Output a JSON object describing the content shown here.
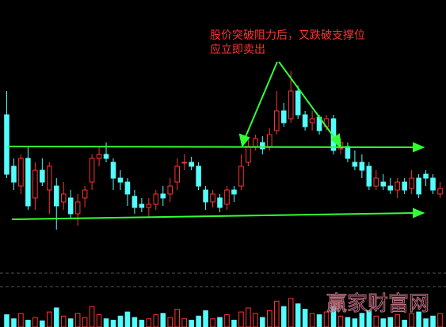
{
  "chart_data": {
    "type": "candlestick",
    "annotation": [
      "股价突破阻力后，又跌破支撑位",
      "应立即卖出"
    ],
    "watermark": "赢家财富网",
    "up_color": "#ff3232",
    "down_color": "#54fcfc",
    "ylim": [
      0,
      220
    ],
    "y2lim": [
      0,
      50
    ],
    "open": [
      155,
      90,
      65,
      100,
      50,
      85,
      60,
      65,
      45,
      50,
      30,
      50,
      70,
      100,
      105,
      95,
      75,
      70,
      52,
      42,
      38,
      42,
      55,
      55,
      70,
      95,
      95,
      90,
      60,
      45,
      50,
      42,
      60,
      65,
      95,
      115,
      120,
      115,
      135,
      160,
      150,
      185,
      155,
      145,
      152,
      140,
      150,
      112,
      115,
      95,
      95,
      90,
      65,
      70,
      65,
      60,
      70,
      62,
      75,
      80,
      75,
      55
    ],
    "close": [
      80,
      70,
      100,
      40,
      85,
      70,
      90,
      40,
      55,
      30,
      45,
      60,
      100,
      105,
      100,
      75,
      70,
      55,
      38,
      38,
      42,
      55,
      50,
      65,
      90,
      95,
      90,
      65,
      45,
      55,
      38,
      60,
      55,
      90,
      115,
      125,
      112,
      130,
      160,
      145,
      185,
      155,
      140,
      150,
      135,
      150,
      110,
      120,
      100,
      90,
      85,
      65,
      75,
      65,
      60,
      70,
      60,
      75,
      55,
      75,
      60,
      62
    ],
    "high": [
      185,
      100,
      105,
      115,
      95,
      100,
      95,
      75,
      70,
      60,
      55,
      65,
      105,
      115,
      120,
      100,
      85,
      75,
      60,
      50,
      50,
      60,
      65,
      75,
      100,
      105,
      102,
      95,
      65,
      60,
      55,
      65,
      65,
      105,
      125,
      130,
      128,
      138,
      185,
      170,
      210,
      192,
      160,
      160,
      155,
      155,
      155,
      125,
      120,
      110,
      105,
      95,
      85,
      80,
      75,
      75,
      75,
      85,
      80,
      85,
      80,
      70
    ],
    "low": [
      75,
      60,
      55,
      35,
      35,
      65,
      30,
      10,
      35,
      25,
      15,
      38,
      60,
      90,
      95,
      60,
      60,
      40,
      30,
      32,
      25,
      35,
      40,
      45,
      60,
      85,
      85,
      60,
      35,
      38,
      32,
      35,
      45,
      60,
      90,
      110,
      105,
      110,
      130,
      140,
      145,
      150,
      135,
      135,
      130,
      135,
      105,
      105,
      95,
      85,
      75,
      60,
      60,
      60,
      55,
      50,
      55,
      55,
      50,
      65,
      55,
      50
    ],
    "volume": [
      18,
      12,
      20,
      10,
      14,
      9,
      22,
      28,
      16,
      12,
      20,
      14,
      30,
      18,
      12,
      10,
      16,
      22,
      14,
      10,
      12,
      18,
      20,
      14,
      26,
      12,
      10,
      16,
      24,
      12,
      14,
      18,
      10,
      22,
      28,
      20,
      14,
      24,
      38,
      30,
      42,
      34,
      26,
      20,
      18,
      22,
      30,
      16,
      14,
      12,
      20,
      24,
      16,
      12,
      14,
      18,
      10,
      20,
      22,
      12,
      16,
      20
    ]
  }
}
